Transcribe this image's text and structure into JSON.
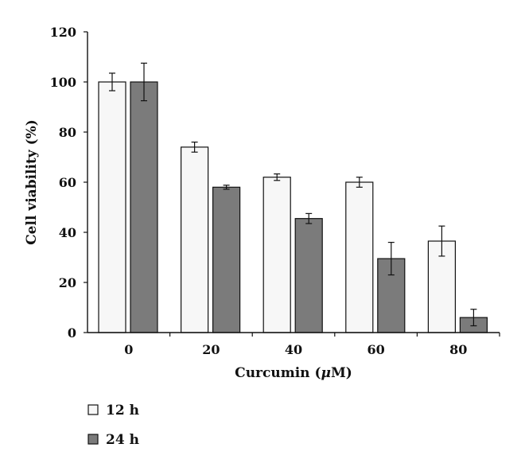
{
  "chart_data": {
    "type": "bar",
    "categories": [
      "0",
      "20",
      "40",
      "60",
      "80"
    ],
    "series": [
      {
        "name": "12 h",
        "color": "#f7f7f7",
        "values": [
          100,
          74,
          62,
          60,
          36.5
        ],
        "errors": [
          3.5,
          2.0,
          1.3,
          2.0,
          6.0
        ]
      },
      {
        "name": "24 h",
        "color": "#7b7b7b",
        "values": [
          100,
          58,
          45.5,
          29.5,
          6
        ],
        "errors": [
          7.5,
          0.8,
          2.0,
          6.5,
          3.3
        ]
      }
    ],
    "xlabel_parts": [
      "Curcumin (",
      "μ",
      "M)"
    ],
    "ylabel": "Cell viability (%)",
    "ylim": [
      0,
      120
    ],
    "yticks": [
      0,
      20,
      40,
      60,
      80,
      100,
      120
    ],
    "grid": false,
    "legend_position": "bottom-left"
  }
}
